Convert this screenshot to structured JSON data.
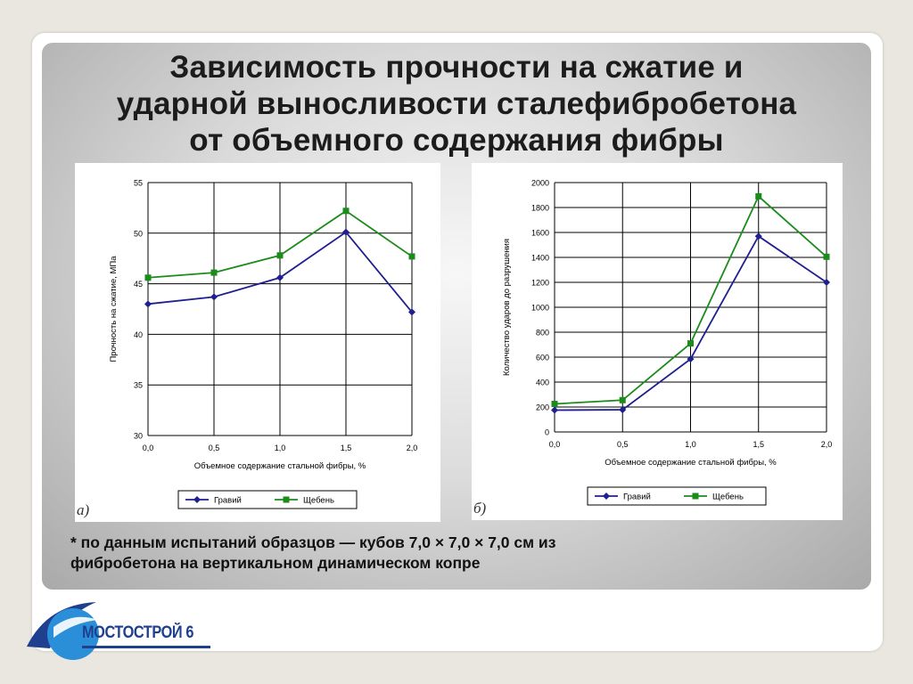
{
  "slide": {
    "title_lines": [
      "Зависимость прочности на сжатие и",
      "ударной выносливости сталефибробетона",
      "от объемного содержания фибры"
    ],
    "footnote_lines": [
      "* по данным испытаний образцов — кубов 7,0 × 7,0 × 7,0 см из",
      "фибробетона на вертикальном динамическом копре"
    ],
    "logo_text": "МОСТОСТРОЙ 6"
  },
  "colors": {
    "series_1": "#1f1f8f",
    "series_2": "#1a8c1a",
    "grid": "#000000",
    "logo_blue": "#1f3f8f",
    "logo_light": "#2a8fd8"
  },
  "chart_data": [
    {
      "type": "line",
      "panel_label": "а)",
      "x": [
        "0,0",
        "0,5",
        "1,0",
        "1,5",
        "2,0"
      ],
      "x_values": [
        0.0,
        0.5,
        1.0,
        1.5,
        2.0
      ],
      "xlabel": "Объемное содержание стальной фибры, %",
      "ylabel": "Прочность на сжатие, МПа",
      "ylim": [
        30,
        55
      ],
      "yticks": [
        30,
        35,
        40,
        45,
        50,
        55
      ],
      "grid": true,
      "legend_position": "bottom",
      "series": [
        {
          "name": "Гравий",
          "values": [
            43.0,
            43.7,
            45.6,
            50.1,
            42.2
          ]
        },
        {
          "name": "Щебень",
          "values": [
            45.6,
            46.1,
            47.8,
            52.2,
            47.7
          ]
        }
      ]
    },
    {
      "type": "line",
      "panel_label": "б)",
      "x": [
        "0,0",
        "0,5",
        "1,0",
        "1,5",
        "2,0"
      ],
      "x_values": [
        0.0,
        0.5,
        1.0,
        1.5,
        2.0
      ],
      "xlabel": "Объемное содержание стальной фибры, %",
      "ylabel": "Количество ударов до разрушения",
      "ylim": [
        0,
        2000
      ],
      "yticks": [
        0,
        200,
        400,
        600,
        800,
        1000,
        1200,
        1400,
        1600,
        1800,
        2000
      ],
      "grid": true,
      "legend_position": "bottom",
      "series": [
        {
          "name": "Гравий",
          "values": [
            175,
            178,
            585,
            1570,
            1200
          ]
        },
        {
          "name": "Щебень",
          "values": [
            225,
            255,
            710,
            1890,
            1405
          ]
        }
      ]
    }
  ]
}
